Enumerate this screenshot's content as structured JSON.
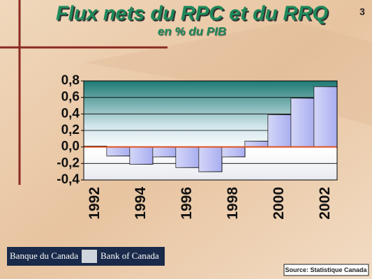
{
  "chart_data": {
    "type": "bar",
    "title": "Flux nets du RPC et du RRQ",
    "subtitle": "en % du PIB",
    "categories": [
      "1992",
      null,
      "1994",
      null,
      "1996",
      null,
      "1998",
      null,
      "2000",
      null,
      "2002"
    ],
    "values": [
      0.01,
      -0.11,
      -0.21,
      -0.12,
      -0.25,
      -0.3,
      -0.12,
      0.07,
      0.39,
      0.59,
      0.73
    ],
    "color": "#a9aef0",
    "zero_line_color": "#e05020",
    "ylim": [
      -0.4,
      0.8
    ],
    "yticks": [
      {
        "value": -0.4,
        "label": "-0,4"
      },
      {
        "value": -0.2,
        "label": "-0,2"
      },
      {
        "value": 0,
        "label": "0,0"
      },
      {
        "value": 0.2,
        "label": "0,2"
      },
      {
        "value": 0.4,
        "label": "0,4"
      },
      {
        "value": 0.6,
        "label": "0,6"
      },
      {
        "value": 0.8,
        "label": "0,8"
      }
    ],
    "grid": true
  },
  "page_number": "3",
  "logo": {
    "fr": "Banque du Canada",
    "en": "Bank of Canada"
  },
  "source": "Source: Statistique Canada"
}
